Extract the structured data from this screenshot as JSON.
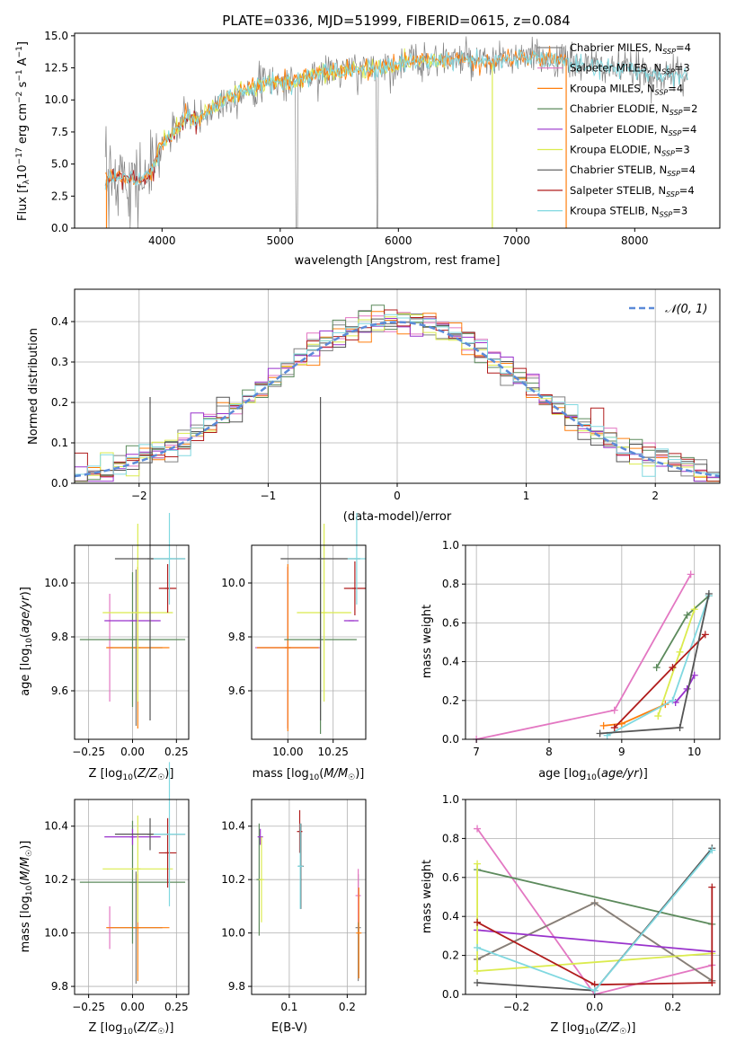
{
  "colors": {
    "Chabrier MILES": "#808080",
    "Salpeter MILES": "#e377c2",
    "Kroupa MILES": "#ff7f0e",
    "Chabrier ELODIE": "#5c8a5c",
    "Salpeter ELODIE": "#9932cc",
    "Kroupa ELODIE": "#dbeb4e",
    "Chabrier STELIB": "#555555",
    "Salpeter STELIB": "#b01c1c",
    "Kroupa STELIB": "#80d8e0",
    "normal": "#5b8ad8"
  },
  "chart_data": [
    {
      "id": "spectrum",
      "type": "line",
      "title": "PLATE=0336, MJD=51999, FIBERID=0615, z=0.084",
      "xlabel": "wavelength [Angstrom, rest frame]",
      "ylabel": "Flux [f_λ 10⁻¹⁷ erg cm⁻² s⁻¹ A⁻¹]",
      "xlim": [
        3260,
        8720
      ],
      "ylim": [
        0,
        15.2
      ],
      "xticks": [
        4000,
        5000,
        6000,
        7000,
        8000
      ],
      "yticks": [
        0,
        2.5,
        5.0,
        7.5,
        10.0,
        12.5,
        15.0
      ],
      "ytick_labels": [
        "0.0",
        "2.5",
        "5.0",
        "7.5",
        "10.0",
        "12.5",
        "15.0"
      ],
      "legend": {
        "position": "top-right",
        "entries": [
          "Chabrier MILES, N_SSP=4",
          "Salpeter MILES, N_SSP=3",
          "Kroupa MILES, N_SSP=4",
          "Chabrier ELODIE, N_SSP=2",
          "Salpeter ELODIE, N_SSP=4",
          "Kroupa ELODIE, N_SSP=3",
          "Chabrier STELIB, N_SSP=4",
          "Salpeter STELIB, N_SSP=4",
          "Kroupa STELIB, N_SSP=3"
        ]
      },
      "data_envelope": {
        "x": [
          3520,
          3600,
          3700,
          3800,
          3900,
          4000,
          4100,
          4200,
          4300,
          4500,
          4700,
          4900,
          5100,
          5300,
          5500,
          5700,
          5900,
          6100,
          6300,
          6500,
          6700,
          6900,
          7100,
          7300,
          7500,
          7700,
          7900,
          8100,
          8300,
          8450
        ],
        "y": [
          3.8,
          4.2,
          4.0,
          3.6,
          4.2,
          6.6,
          7.5,
          8.7,
          8.4,
          9.9,
          10.7,
          11.4,
          11.4,
          12.0,
          12.3,
          12.4,
          12.6,
          13.0,
          13.1,
          13.2,
          12.8,
          13.2,
          13.3,
          13.2,
          12.8,
          12.6,
          12.4,
          12.1,
          11.9,
          11.8
        ]
      },
      "grid": false
    },
    {
      "id": "residuals",
      "type": "histogram",
      "xlabel": "(data-model)/error",
      "ylabel": "Normed distribution",
      "xlim": [
        -2.5,
        2.5
      ],
      "ylim": [
        0,
        0.48
      ],
      "xticks": [
        -2,
        -1,
        0,
        1,
        2
      ],
      "yticks": [
        0.0,
        0.1,
        0.2,
        0.3,
        0.4
      ],
      "legend": {
        "position": "top-right",
        "entries": [
          "𝒩(0, 1)"
        ]
      },
      "grid": true,
      "bin_width": 0.1
    },
    {
      "id": "age_vs_Z",
      "type": "scatter",
      "xlabel": "Z [log₁₀(Z/Z☉)]",
      "ylabel": "age  [log₁₀(age/yr)]",
      "xlim": [
        -0.33,
        0.32
      ],
      "ylim": [
        9.42,
        10.14
      ],
      "xticks": [
        -0.25,
        0.0,
        0.25
      ],
      "xtick_labels": [
        "−0.25",
        "0.00",
        "0.25"
      ],
      "yticks": [
        9.6,
        9.8,
        10.0
      ],
      "ytick_labels": [
        "9.6",
        "9.8",
        "10.0"
      ],
      "grid": true,
      "points": [
        {
          "model": "Chabrier MILES",
          "x": 0.02,
          "y": 9.76,
          "xerr": 0.15,
          "yerr": 0.29
        },
        {
          "model": "Salpeter MILES",
          "x": -0.13,
          "y": 9.76,
          "xerr": 0.0,
          "yerr": 0.2
        },
        {
          "model": "Kroupa MILES",
          "x": 0.03,
          "y": 9.76,
          "xerr": 0.18,
          "yerr": 0.3
        },
        {
          "model": "Chabrier ELODIE",
          "x": 0.0,
          "y": 9.79,
          "xerr": 0.3,
          "yerr": 0.25
        },
        {
          "model": "Salpeter ELODIE",
          "x": 0.0,
          "y": 9.86,
          "xerr": 0.16,
          "yerr": 0.0
        },
        {
          "model": "Kroupa ELODIE",
          "x": 0.03,
          "y": 9.89,
          "xerr": 0.2,
          "yerr": 0.33
        },
        {
          "model": "Chabrier STELIB",
          "x": 0.1,
          "y": 10.09,
          "xerr": 0.2,
          "yerr": 0.6
        },
        {
          "model": "Salpeter STELIB",
          "x": 0.2,
          "y": 9.98,
          "xerr": 0.05,
          "yerr": 0.09
        },
        {
          "model": "Kroupa STELIB",
          "x": 0.21,
          "y": 10.09,
          "xerr": 0.09,
          "yerr": 0.17
        }
      ]
    },
    {
      "id": "age_vs_mass",
      "type": "scatter",
      "xlabel": "mass [log₁₀(M/M☉)]",
      "ylabel": "",
      "xlim": [
        9.8,
        10.43
      ],
      "ylim": [
        9.42,
        10.14
      ],
      "xticks": [
        10.0,
        10.25
      ],
      "xtick_labels": [
        "10.00",
        "10.25"
      ],
      "yticks": [
        9.6,
        9.8,
        10.0
      ],
      "ytick_labels": [
        "9.6",
        "9.8",
        "10.0"
      ],
      "grid": true,
      "points": [
        {
          "model": "Chabrier MILES",
          "x": 10.0,
          "y": 9.76,
          "xerr": 0.18,
          "yerr": 0.3
        },
        {
          "model": "Salpeter MILES",
          "x": 10.0,
          "y": 9.76,
          "xerr": 0.18,
          "yerr": 0.3
        },
        {
          "model": "Kroupa MILES",
          "x": 10.0,
          "y": 9.76,
          "xerr": 0.17,
          "yerr": 0.31
        },
        {
          "model": "Chabrier ELODIE",
          "x": 10.18,
          "y": 9.79,
          "xerr": 0.2,
          "yerr": 0.35
        },
        {
          "model": "Salpeter ELODIE",
          "x": 10.35,
          "y": 9.86,
          "xerr": 0.04,
          "yerr": 0.0
        },
        {
          "model": "Kroupa ELODIE",
          "x": 10.2,
          "y": 9.89,
          "xerr": 0.15,
          "yerr": 0.33
        },
        {
          "model": "Chabrier STELIB",
          "x": 10.18,
          "y": 10.09,
          "xerr": 0.22,
          "yerr": 0.6
        },
        {
          "model": "Salpeter STELIB",
          "x": 10.37,
          "y": 9.98,
          "xerr": 0.06,
          "yerr": 0.1
        },
        {
          "model": "Kroupa STELIB",
          "x": 10.38,
          "y": 10.09,
          "xerr": 0.05,
          "yerr": 0.17
        }
      ]
    },
    {
      "id": "weight_vs_age",
      "type": "line",
      "xlabel": "age  [log₁₀(age/yr)]",
      "ylabel": "mass weight",
      "xlim": [
        6.85,
        10.35
      ],
      "ylim": [
        0,
        1.0
      ],
      "xticks": [
        7,
        8,
        9,
        10
      ],
      "xtick_labels": [
        "7",
        "8",
        "9",
        "10"
      ],
      "yticks": [
        0.0,
        0.2,
        0.4,
        0.6,
        0.8,
        1.0
      ],
      "ytick_labels": [
        "0.0",
        "0.2",
        "0.4",
        "0.6",
        "0.8",
        "1.0"
      ],
      "grid": true,
      "series": [
        {
          "model": "Salpeter MILES",
          "x": [
            7.0,
            8.9,
            9.95
          ],
          "y": [
            0.0,
            0.15,
            0.85
          ]
        },
        {
          "model": "Chabrier ELODIE",
          "x": [
            9.48,
            9.9,
            10.2
          ],
          "y": [
            0.37,
            0.64,
            0.74
          ]
        },
        {
          "model": "Salpeter ELODIE",
          "x": [
            9.74,
            9.9,
            10.0
          ],
          "y": [
            0.19,
            0.26,
            0.33
          ]
        },
        {
          "model": "Kroupa ELODIE",
          "x": [
            9.5,
            9.8,
            10.0
          ],
          "y": [
            0.12,
            0.45,
            0.67
          ]
        },
        {
          "model": "Kroupa MILES",
          "x": [
            8.75,
            9.0,
            9.6
          ],
          "y": [
            0.07,
            0.08,
            0.18
          ]
        },
        {
          "model": "Kroupa STELIB",
          "x": [
            8.8,
            9.7,
            10.2
          ],
          "y": [
            0.02,
            0.2,
            0.74
          ]
        },
        {
          "model": "Salpeter STELIB",
          "x": [
            8.9,
            9.7,
            10.15
          ],
          "y": [
            0.06,
            0.37,
            0.54
          ]
        },
        {
          "model": "Chabrier STELIB",
          "x": [
            8.7,
            9.8,
            10.2
          ],
          "y": [
            0.03,
            0.06,
            0.75
          ]
        }
      ]
    },
    {
      "id": "mass_vs_Z",
      "type": "scatter",
      "xlabel": "Z [log₁₀(Z/Z☉)]",
      "ylabel": "mass [log₁₀(M/M☉)]",
      "xlim": [
        -0.33,
        0.32
      ],
      "ylim": [
        9.77,
        10.5
      ],
      "xticks": [
        -0.25,
        0.0,
        0.25
      ],
      "xtick_labels": [
        "−0.25",
        "0.00",
        "0.25"
      ],
      "yticks": [
        9.8,
        10.0,
        10.2,
        10.4
      ],
      "ytick_labels": [
        "9.8",
        "10.0",
        "10.2",
        "10.4"
      ],
      "grid": true,
      "points": [
        {
          "model": "Chabrier MILES",
          "x": 0.02,
          "y": 10.02,
          "xerr": 0.15,
          "yerr": 0.21
        },
        {
          "model": "Salpeter MILES",
          "x": -0.13,
          "y": 10.02,
          "xerr": 0.0,
          "yerr": 0.08
        },
        {
          "model": "Kroupa MILES",
          "x": 0.03,
          "y": 10.02,
          "xerr": 0.18,
          "yerr": 0.2
        },
        {
          "model": "Chabrier ELODIE",
          "x": 0.0,
          "y": 10.19,
          "xerr": 0.3,
          "yerr": 0.23
        },
        {
          "model": "Salpeter ELODIE",
          "x": 0.0,
          "y": 10.36,
          "xerr": 0.16,
          "yerr": 0.03
        },
        {
          "model": "Kroupa ELODIE",
          "x": 0.03,
          "y": 10.24,
          "xerr": 0.2,
          "yerr": 0.2
        },
        {
          "model": "Chabrier STELIB",
          "x": 0.1,
          "y": 10.37,
          "xerr": 0.2,
          "yerr": 0.06
        },
        {
          "model": "Salpeter STELIB",
          "x": 0.2,
          "y": 10.3,
          "xerr": 0.05,
          "yerr": 0.13
        },
        {
          "model": "Kroupa STELIB",
          "x": 0.21,
          "y": 10.37,
          "xerr": 0.09,
          "yerr": 0.27
        }
      ]
    },
    {
      "id": "mass_vs_ebv",
      "type": "scatter",
      "xlabel": "E(B-V)",
      "ylabel": "",
      "xlim": [
        0.035,
        0.232
      ],
      "ylim": [
        9.77,
        10.5
      ],
      "xticks": [
        0.1,
        0.2
      ],
      "xtick_labels": [
        "0.1",
        "0.2"
      ],
      "yticks": [
        9.8,
        10.0,
        10.2,
        10.4
      ],
      "ytick_labels": [
        "9.8",
        "10.0",
        "10.2",
        "10.4"
      ],
      "grid": true,
      "points": [
        {
          "model": "Chabrier ELODIE",
          "x": 0.048,
          "y": 10.2,
          "xerr": 0.0,
          "yerr": 0.21
        },
        {
          "model": "Salpeter ELODIE",
          "x": 0.05,
          "y": 10.36,
          "xerr": 0.0,
          "yerr": 0.03
        },
        {
          "model": "Kroupa ELODIE",
          "x": 0.052,
          "y": 10.2,
          "xerr": 0.0,
          "yerr": 0.16
        },
        {
          "model": "Chabrier STELIB",
          "x": 0.12,
          "y": 10.25,
          "xerr": 0.0,
          "yerr": 0.16
        },
        {
          "model": "Salpeter STELIB",
          "x": 0.118,
          "y": 10.38,
          "xerr": 0.0,
          "yerr": 0.08
        },
        {
          "model": "Kroupa STELIB",
          "x": 0.119,
          "y": 10.25,
          "xerr": 0.0,
          "yerr": 0.16
        },
        {
          "model": "Chabrier MILES",
          "x": 0.219,
          "y": 10.02,
          "xerr": 0.0,
          "yerr": 0.2
        },
        {
          "model": "Salpeter MILES",
          "x": 0.219,
          "y": 10.14,
          "xerr": 0.0,
          "yerr": 0.1
        },
        {
          "model": "Kroupa MILES",
          "x": 0.22,
          "y": 10.0,
          "xerr": 0.0,
          "yerr": 0.17
        }
      ]
    },
    {
      "id": "weight_vs_Z",
      "type": "line",
      "xlabel": "Z [log₁₀(Z/Z☉)]",
      "ylabel": "mass weight",
      "xlim": [
        -0.33,
        0.32
      ],
      "ylim": [
        0,
        1.0
      ],
      "xticks": [
        -0.2,
        0.0,
        0.2
      ],
      "xtick_labels": [
        "−0.2",
        "0.0",
        "0.2"
      ],
      "yticks": [
        0.0,
        0.2,
        0.4,
        0.6,
        0.8,
        1.0
      ],
      "ytick_labels": [
        "0.0",
        "0.2",
        "0.4",
        "0.6",
        "0.8",
        "1.0"
      ],
      "grid": true,
      "series": [
        {
          "model": "Salpeter MILES",
          "x": [
            -0.3,
            0.0,
            0.3
          ],
          "y": [
            0.85,
            0.0,
            0.15
          ]
        },
        {
          "model": "Kroupa MILES",
          "x": [
            -0.3,
            0.0,
            0.3
          ],
          "y": [
            0.18,
            0.47,
            0.07
          ]
        },
        {
          "model": "Chabrier MILES",
          "x": [
            -0.3,
            0.0,
            0.3
          ],
          "y": [
            0.18,
            0.47,
            0.07
          ]
        },
        {
          "model": "Chabrier ELODIE",
          "x": [
            -0.3,
            0.3
          ],
          "y": [
            0.64,
            0.36
          ]
        },
        {
          "model": "Salpeter ELODIE",
          "x": [
            -0.3,
            0.3
          ],
          "y": [
            0.33,
            0.22
          ]
        },
        {
          "model": "Kroupa ELODIE",
          "x": [
            -0.3,
            -0.3,
            0.3
          ],
          "y": [
            0.67,
            0.12,
            0.21
          ]
        },
        {
          "model": "Chabrier STELIB",
          "x": [
            -0.3,
            0.0,
            0.3
          ],
          "y": [
            0.06,
            0.02,
            0.75
          ]
        },
        {
          "model": "Salpeter STELIB",
          "x": [
            -0.3,
            0.0,
            0.3,
            0.3
          ],
          "y": [
            0.37,
            0.05,
            0.06,
            0.55
          ]
        },
        {
          "model": "Kroupa STELIB",
          "x": [
            -0.3,
            0.0,
            0.3
          ],
          "y": [
            0.24,
            0.02,
            0.74
          ]
        }
      ]
    }
  ]
}
